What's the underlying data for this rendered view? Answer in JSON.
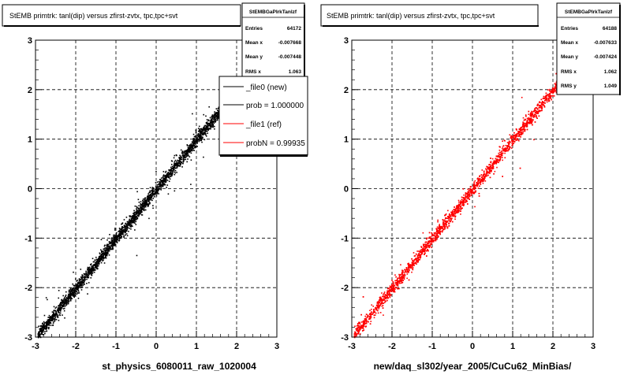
{
  "colors": {
    "background": "#ffffff",
    "frame": "#000000",
    "grid": "#000000",
    "series_new": "#000000",
    "series_ref": "#ff0000"
  },
  "chart_data": [
    {
      "type": "scatter",
      "title": "StEMB primtrk: tanl(dip) versus zfirst-zvtx, tpc,tpc+svt",
      "xlabel": "st_physics_6080011_raw_1020004",
      "ylabel": "",
      "xlim": [
        -3,
        3
      ],
      "ylim": [
        -3,
        3
      ],
      "xticks": [
        "-3",
        "-2",
        "-1",
        "0",
        "1",
        "2",
        "3"
      ],
      "yticks": [
        "-3",
        "-2",
        "-1",
        "0",
        "1",
        "2",
        "3"
      ],
      "grid": true,
      "series": [
        {
          "name": "_file0 (new)",
          "trend": {
            "slope": 1.0,
            "intercept": 0.0,
            "x_range": [
              -2.95,
              1.7
            ]
          }
        }
      ],
      "stats": {
        "name": "StEMBGaPIrkTanlzf",
        "rows": [
          {
            "label": "Entries",
            "value": "64172"
          },
          {
            "label": "Mean x",
            "value": "-0.007668"
          },
          {
            "label": "Mean y",
            "value": "-0.007448"
          },
          {
            "label": "RMS x",
            "value": "1.063"
          }
        ]
      },
      "legend": {
        "placement": "top-right",
        "entries": [
          {
            "label": "_file0 (new)",
            "color": "#000000"
          },
          {
            "label": "prob = 1.000000",
            "color": "#000000"
          },
          {
            "label": "_file1 (ref)",
            "color": "#ff0000"
          },
          {
            "label": "probN = 0.99935",
            "color": "#ff0000"
          }
        ]
      }
    },
    {
      "type": "scatter",
      "title": "StEMB primtrk: tanl(dip) versus zfirst-zvtx, tpc,tpc+svt",
      "xlabel": "new/daq_sl302/year_2005/CuCu62_MinBias/",
      "ylabel": "",
      "xlim": [
        -3,
        3
      ],
      "ylim": [
        -3,
        3
      ],
      "xticks": [
        "-3",
        "-2",
        "-1",
        "0",
        "1",
        "2",
        "3"
      ],
      "yticks": [
        "-3",
        "-2",
        "-1",
        "0",
        "1",
        "2",
        "3"
      ],
      "grid": true,
      "series": [
        {
          "name": "_file1 (ref)",
          "trend": {
            "slope": 1.0,
            "intercept": 0.0,
            "x_range": [
              -2.95,
              2.1
            ]
          }
        }
      ],
      "stats": {
        "name": "StEMBGaPIrkTanlzf",
        "rows": [
          {
            "label": "Entries",
            "value": "64188"
          },
          {
            "label": "Mean x",
            "value": "-0.007633"
          },
          {
            "label": "Mean y",
            "value": "-0.007424"
          },
          {
            "label": "RMS x",
            "value": "1.062"
          },
          {
            "label": "RMS y",
            "value": "1.049"
          }
        ]
      }
    }
  ]
}
